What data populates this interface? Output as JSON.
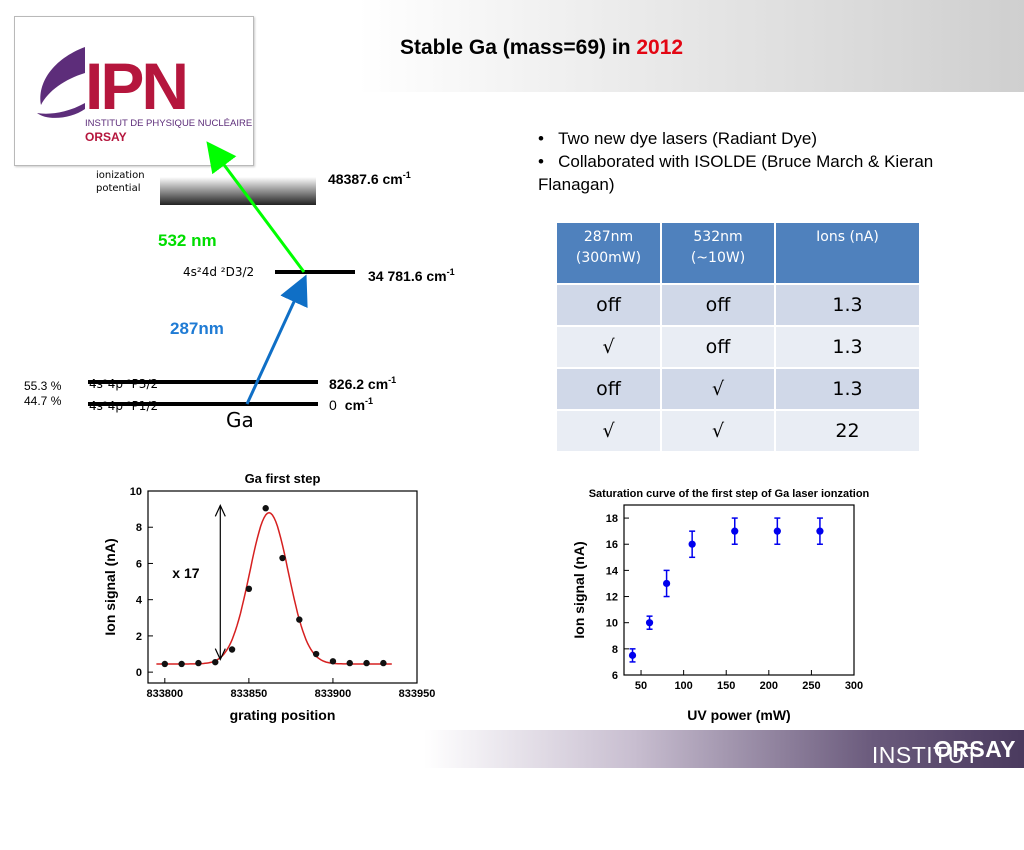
{
  "title": {
    "main": "Stable Ga (mass=69) in ",
    "year": "2012"
  },
  "logo": {
    "letters": "IPN",
    "line1": "INSTITUT DE PHYSIQUE NUCLÉAIRE",
    "line2": "ORSAY"
  },
  "footer": {
    "prefix": "INSTITUT DE PHYSIQUE NUCLÉAIRE ",
    "bold": "ORSAY"
  },
  "level_scheme": {
    "ionization_label_1": "ionization",
    "ionization_label_2": "potential",
    "ionization_energy": "48387.6 cm",
    "excited_energy": "34 781.6 cm",
    "excited_state": "4s²4d ²D3/2",
    "state_p32": "4s²4p ²P3/2",
    "state_p12": "4s²4p ²P1/2",
    "energy_p32": "826.2 cm",
    "energy_p12": "0",
    "energy_p12_unit": "cm",
    "sup": "-1",
    "element": "Ga",
    "laser_532": "532 nm",
    "laser_287": "287nm",
    "abundance_1": "55.3 %",
    "abundance_2": "44.7 %",
    "colors": {
      "green": "#00ff00",
      "blue": "#0f6fc6",
      "green_text": "#00dd00",
      "blue_text": "#1f7bd4"
    }
  },
  "bullets": [
    "Two new dye lasers (Radiant Dye)",
    "Collaborated with ISOLDE (Bruce March & Kieran Flanagan)"
  ],
  "table": {
    "headers": [
      [
        "287nm",
        "(300mW)"
      ],
      [
        "532nm",
        "(~10W)"
      ],
      [
        "Ions (nA)",
        ""
      ]
    ],
    "rows": [
      [
        "off",
        "off",
        "1.3"
      ],
      [
        "√",
        "off",
        "1.3"
      ],
      [
        "off",
        "√",
        "1.3"
      ],
      [
        "√",
        "√",
        "22"
      ]
    ]
  },
  "chart_data": [
    {
      "type": "scatter",
      "title": "Ga first step",
      "xlabel": "grating position",
      "ylabel": "Ion signal (nA)",
      "xlim": [
        833790,
        833950
      ],
      "ylim": [
        -0.6,
        10
      ],
      "xticks": [
        833800,
        833850,
        833900,
        833950
      ],
      "yticks": [
        0,
        2,
        4,
        6,
        8,
        10
      ],
      "annotation": "x 17",
      "series": [
        {
          "x": [
            833800,
            833810,
            833820,
            833830,
            833840,
            833850,
            833860,
            833870,
            833880,
            833890,
            833900,
            833910,
            833920,
            833930
          ],
          "y": [
            0.45,
            0.45,
            0.5,
            0.55,
            1.25,
            4.6,
            9.05,
            6.3,
            2.9,
            1.0,
            0.6,
            0.5,
            0.5,
            0.5
          ]
        }
      ],
      "fit": {
        "type": "gaussian",
        "baseline": 0.45,
        "amplitude": 8.35,
        "center": 833862,
        "sigma": 11.5,
        "color": "#d62020"
      }
    },
    {
      "type": "scatter",
      "title": "Saturation curve of the first step of Ga laser ionzation",
      "xlabel": "UV power (mW)",
      "ylabel": "Ion signal (nA)",
      "xlim": [
        30,
        300
      ],
      "ylim": [
        6,
        19
      ],
      "xticks": [
        50,
        100,
        150,
        200,
        250,
        300
      ],
      "yticks": [
        6,
        8,
        10,
        12,
        14,
        16,
        18
      ],
      "series": [
        {
          "x": [
            40,
            60,
            80,
            110,
            160,
            210,
            260
          ],
          "y": [
            7.5,
            10,
            13,
            16,
            17,
            17,
            17
          ],
          "err": [
            0.5,
            0.5,
            1.0,
            1.0,
            1.0,
            1.0,
            1.0
          ],
          "color": "#0000ee"
        }
      ]
    }
  ]
}
